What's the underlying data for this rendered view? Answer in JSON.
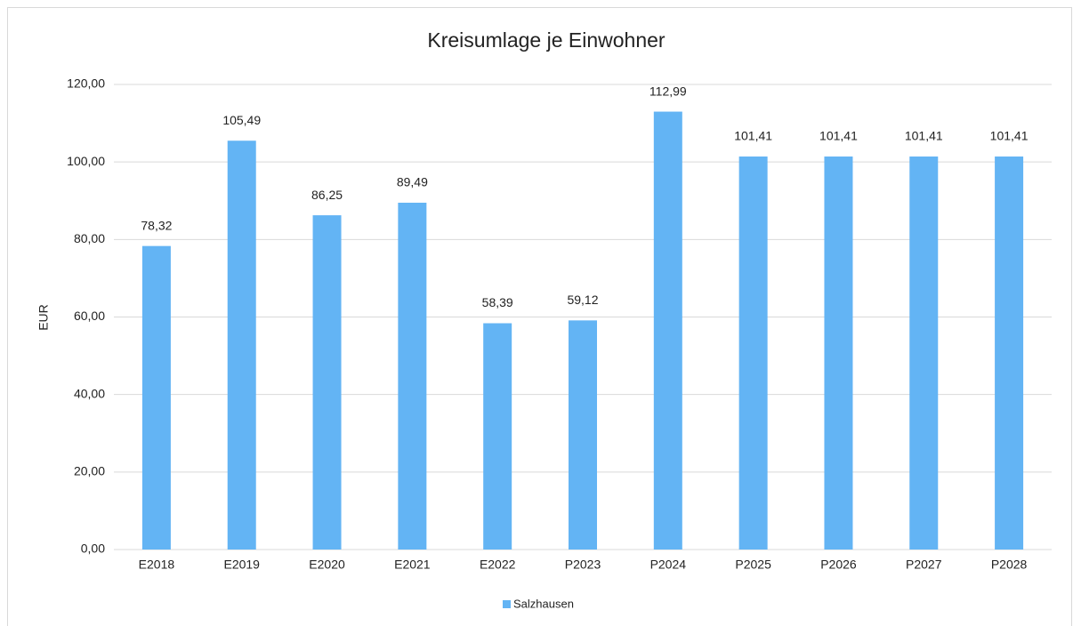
{
  "chart_data": {
    "type": "bar",
    "title": "Kreisumlage je Einwohner",
    "y_label": "EUR",
    "categories": [
      "E2018",
      "E2019",
      "E2020",
      "E2021",
      "E2022",
      "P2023",
      "P2024",
      "P2025",
      "P2026",
      "P2027",
      "P2028"
    ],
    "series": [
      {
        "name": "Salzhausen",
        "color": "#63b4f4",
        "values": [
          78.32,
          105.49,
          86.25,
          89.49,
          58.39,
          59.12,
          112.99,
          101.41,
          101.41,
          101.41,
          101.41
        ],
        "value_labels": [
          "78,32",
          "105,49",
          "86,25",
          "89,49",
          "58,39",
          "59,12",
          "112,99",
          "101,41",
          "101,41",
          "101,41",
          "101,41"
        ]
      }
    ],
    "ylim": [
      0,
      120
    ],
    "yticks": [
      {
        "value": 0,
        "label": "0,00"
      },
      {
        "value": 20,
        "label": "20,00"
      },
      {
        "value": 40,
        "label": "40,00"
      },
      {
        "value": 60,
        "label": "60,00"
      },
      {
        "value": 80,
        "label": "80,00"
      },
      {
        "value": 100,
        "label": "100,00"
      },
      {
        "value": 120,
        "label": "120,00"
      }
    ],
    "grid": true,
    "legend": "bottom"
  }
}
